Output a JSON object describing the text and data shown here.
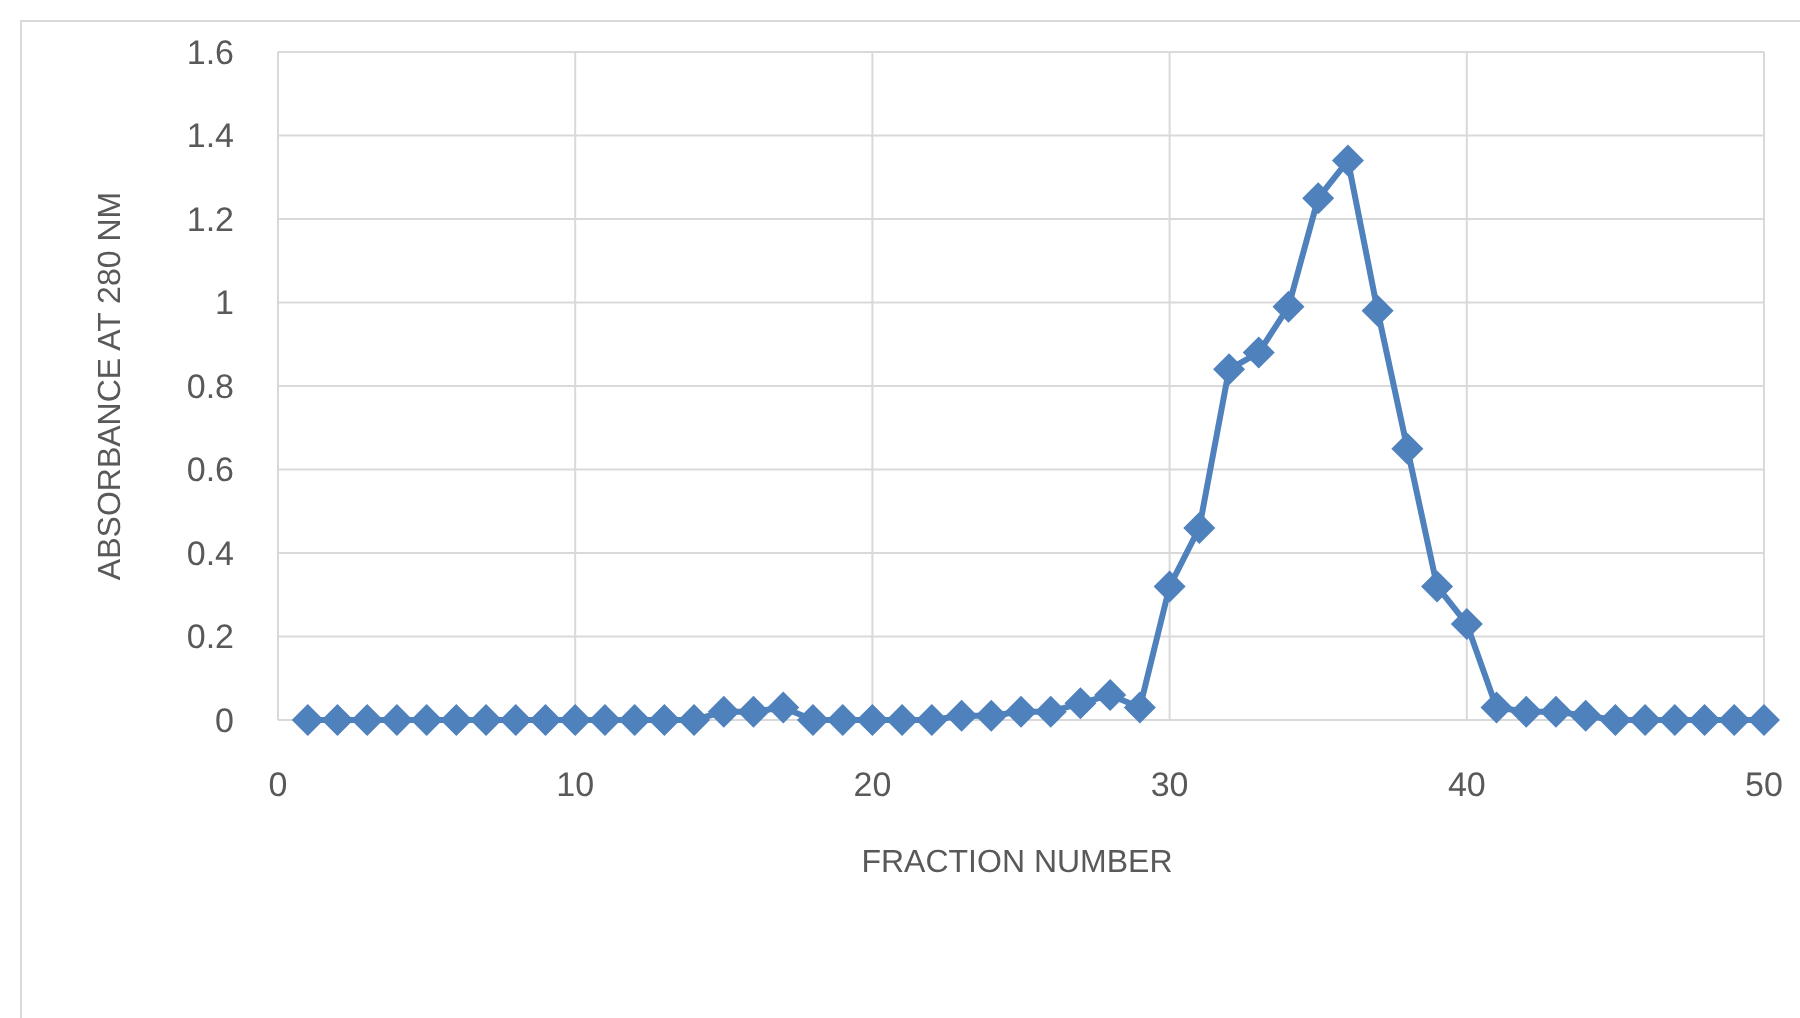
{
  "chart_data": {
    "type": "line",
    "xlabel": "FRACTION NUMBER",
    "ylabel": "ABSORBANCE AT 280 NM",
    "x": [
      1,
      2,
      3,
      4,
      5,
      6,
      7,
      8,
      9,
      10,
      11,
      12,
      13,
      14,
      15,
      16,
      17,
      18,
      19,
      20,
      21,
      22,
      23,
      24,
      25,
      26,
      27,
      28,
      29,
      30,
      31,
      32,
      33,
      34,
      35,
      36,
      37,
      38,
      39,
      40,
      41,
      42,
      43,
      44,
      45,
      46,
      47,
      48,
      49,
      50
    ],
    "series": [
      {
        "color": "#4f81bd",
        "values": [
          0,
          0,
          0,
          0,
          0,
          0,
          0,
          0,
          0,
          0,
          0,
          0,
          0,
          0,
          0.02,
          0.02,
          0.03,
          0,
          0,
          0,
          0,
          0,
          0.01,
          0.01,
          0.02,
          0.02,
          0.04,
          0.06,
          0.03,
          0.32,
          0.46,
          0.84,
          0.88,
          0.99,
          1.25,
          1.34,
          0.98,
          0.65,
          0.32,
          0.23,
          0.03,
          0.02,
          0.02,
          0.01,
          0,
          0,
          0,
          0,
          0,
          0
        ]
      }
    ],
    "xlim": [
      0,
      50
    ],
    "xticks": [
      0,
      10,
      20,
      30,
      40,
      50
    ],
    "ylim": [
      0,
      1.6
    ],
    "yticks": [
      0,
      0.2,
      0.4,
      0.6,
      0.8,
      1,
      1.2,
      1.4,
      1.6
    ],
    "grid": true,
    "marker": "diamond",
    "line_style": "solid"
  }
}
